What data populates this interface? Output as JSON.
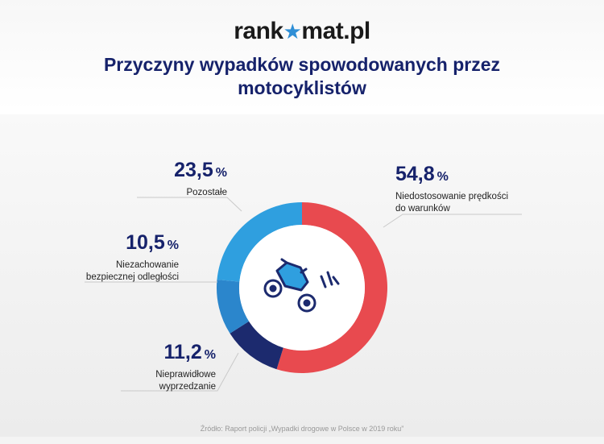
{
  "brand": {
    "before": "rank",
    "star": "★",
    "after": "mat.pl"
  },
  "title": "Przyczyny wypadków spowodowanych przez motocyklistów",
  "source": "Źródło: Raport policji „Wypadki drogowe w Polsce w 2019 roku”",
  "chart_data": {
    "type": "pie",
    "variant": "donut",
    "slices": [
      {
        "value": 54.8,
        "value_label": "54,8",
        "unit": "%",
        "label": "Niedostosowanie prędkości do warunków",
        "label_lines": [
          "Niedostosowanie prędkości",
          "do warunków"
        ],
        "color": "#e84a4f"
      },
      {
        "value": 11.2,
        "value_label": "11,2",
        "unit": "%",
        "label": "Nieprawidłowe wyprzedzanie",
        "label_lines": [
          "Nieprawidłowe",
          "wyprzedzanie"
        ],
        "color": "#1c2a6e"
      },
      {
        "value": 10.5,
        "value_label": "10,5",
        "unit": "%",
        "label": "Niezachowanie bezpiecznej odległości",
        "label_lines": [
          "Niezachowanie",
          "bezpiecznej odległości"
        ],
        "color": "#2b86cc"
      },
      {
        "value": 23.5,
        "value_label": "23,5",
        "unit": "%",
        "label": "Pozostałe",
        "label_lines": [
          "Pozostałe"
        ],
        "color": "#2f9fdf"
      }
    ],
    "legend": "none",
    "center_icon": "motorcycle-icon"
  }
}
